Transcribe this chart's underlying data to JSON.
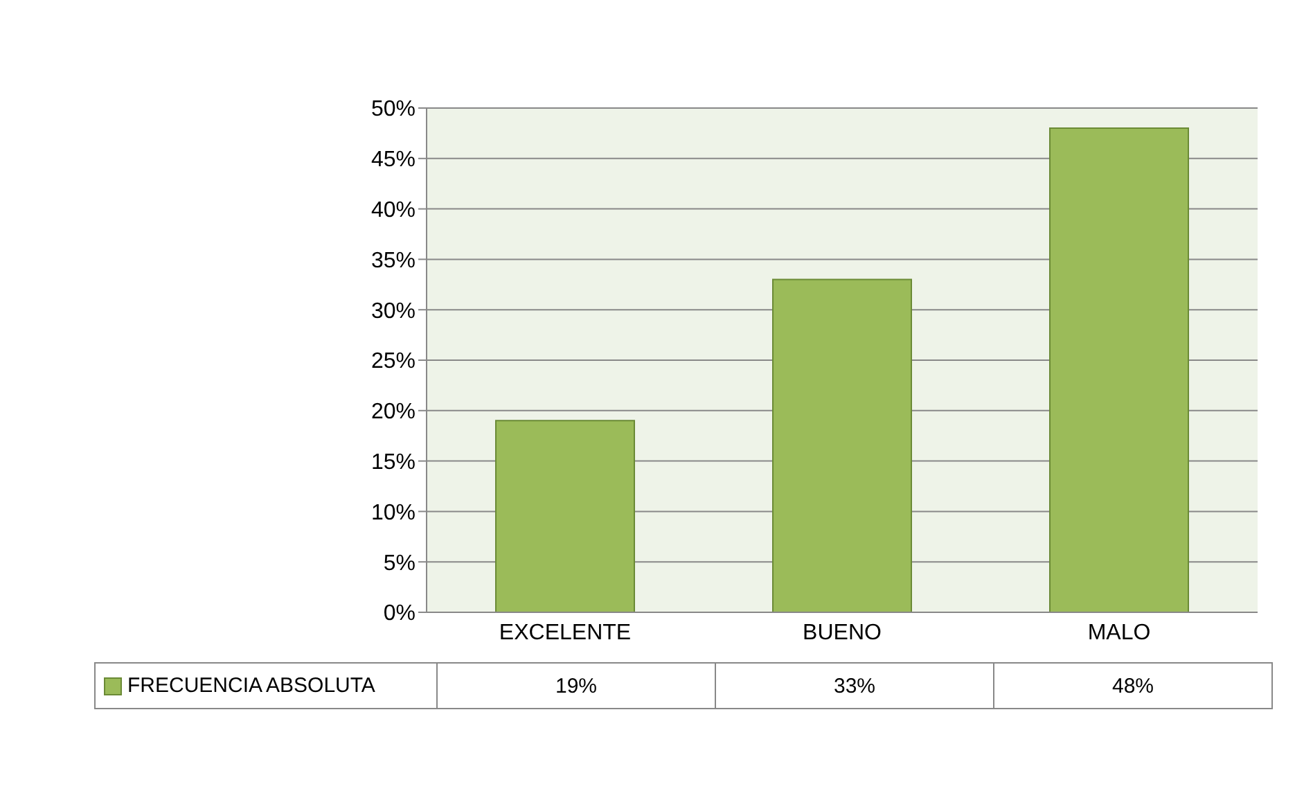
{
  "chart_data": {
    "type": "bar",
    "categories": [
      "EXCELENTE",
      "BUENO",
      "MALO"
    ],
    "series": [
      {
        "name": "FRECUENCIA ABSOLUTA",
        "color": "#9bbb59",
        "values": [
          19,
          33,
          48
        ],
        "value_labels": [
          "19%",
          "33%",
          "48%"
        ]
      }
    ],
    "ylim": [
      0,
      50
    ],
    "yticks": [
      {
        "value": 0,
        "label": "0%"
      },
      {
        "value": 5,
        "label": "5%"
      },
      {
        "value": 10,
        "label": "10%"
      },
      {
        "value": 15,
        "label": "15%"
      },
      {
        "value": 20,
        "label": "20%"
      },
      {
        "value": 25,
        "label": "25%"
      },
      {
        "value": 30,
        "label": "30%"
      },
      {
        "value": 35,
        "label": "35%"
      },
      {
        "value": 40,
        "label": "40%"
      },
      {
        "value": 45,
        "label": "45%"
      },
      {
        "value": 50,
        "label": "50%"
      }
    ],
    "grid": "y",
    "legend": "bottom"
  }
}
